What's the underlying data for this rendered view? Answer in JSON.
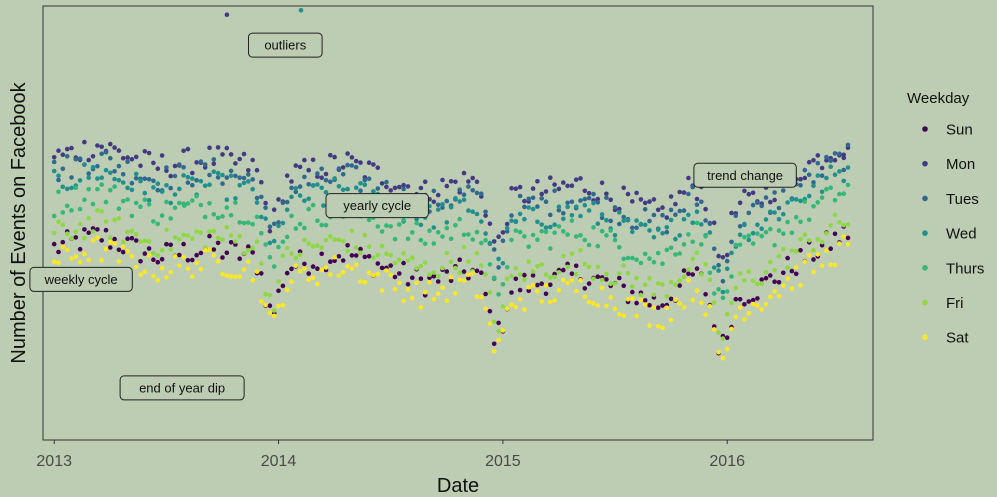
{
  "chart_data": {
    "type": "scatter",
    "title": "",
    "xlabel": "Date",
    "ylabel": "Number of Events on Facebook",
    "xlim": [
      2012.95,
      2016.65
    ],
    "ylim": [
      0,
      100
    ],
    "x_ticks": [
      {
        "value": 2013,
        "label": "2013"
      },
      {
        "value": 2014,
        "label": "2014"
      },
      {
        "value": 2015,
        "label": "2015"
      },
      {
        "value": 2016,
        "label": "2016"
      }
    ],
    "legend": {
      "title": "Weekday",
      "position": "right",
      "entries": [
        {
          "name": "Sun",
          "color": "#440154"
        },
        {
          "name": "Mon",
          "color": "#443a83"
        },
        {
          "name": "Tues",
          "color": "#31688e"
        },
        {
          "name": "Wed",
          "color": "#21908d"
        },
        {
          "name": "Thurs",
          "color": "#35b779"
        },
        {
          "name": "Fri",
          "color": "#8fd744"
        },
        {
          "name": "Sat",
          "color": "#fde725"
        }
      ]
    },
    "series": [
      {
        "name": "Sun",
        "offset": -8,
        "amp": 0.6
      },
      {
        "name": "Mon",
        "offset": 16,
        "amp": 1.0
      },
      {
        "name": "Tues",
        "offset": 13,
        "amp": 1.0
      },
      {
        "name": "Wed",
        "offset": 10,
        "amp": 1.0
      },
      {
        "name": "Thurs",
        "offset": 6,
        "amp": 0.9
      },
      {
        "name": "Fri",
        "offset": -3,
        "amp": 0.6
      },
      {
        "name": "Sat",
        "offset": -13,
        "amp": 0.6
      }
    ],
    "trend": {
      "baseline": [
        [
          2013.0,
          49
        ],
        [
          2013.2,
          52
        ],
        [
          2013.45,
          47
        ],
        [
          2013.7,
          49
        ],
        [
          2013.9,
          47
        ],
        [
          2014.05,
          45
        ],
        [
          2014.3,
          48
        ],
        [
          2014.5,
          44
        ],
        [
          2014.65,
          41
        ],
        [
          2014.85,
          44
        ],
        [
          2015.0,
          40
        ],
        [
          2015.15,
          41
        ],
        [
          2015.35,
          43
        ],
        [
          2015.55,
          39
        ],
        [
          2015.7,
          36
        ],
        [
          2015.85,
          43
        ],
        [
          2016.0,
          37
        ],
        [
          2016.15,
          40
        ],
        [
          2016.35,
          47
        ],
        [
          2016.55,
          53
        ]
      ],
      "end_of_year_dips": [
        2013.97,
        2014.97,
        2015.97
      ]
    },
    "outliers": [
      {
        "x": 2013.77,
        "y": 98,
        "series": "Mon"
      },
      {
        "x": 2014.1,
        "y": 99,
        "series": "Wed"
      },
      {
        "x": 2014.2,
        "y": 54,
        "series": "Wed"
      },
      {
        "x": 2013.58,
        "y": 54,
        "series": "Thurs"
      },
      {
        "x": 2016.52,
        "y": 65,
        "series": "Mon"
      }
    ],
    "annotations": [
      {
        "text": "outliers",
        "x": 2014.03,
        "y": 91
      },
      {
        "text": "yearly cycle",
        "x": 2014.44,
        "y": 54
      },
      {
        "text": "weekly cycle",
        "x": 2013.12,
        "y": 37
      },
      {
        "text": "end of year dip",
        "x": 2013.57,
        "y": 12
      },
      {
        "text": "trend change",
        "x": 2016.08,
        "y": 61
      }
    ]
  }
}
